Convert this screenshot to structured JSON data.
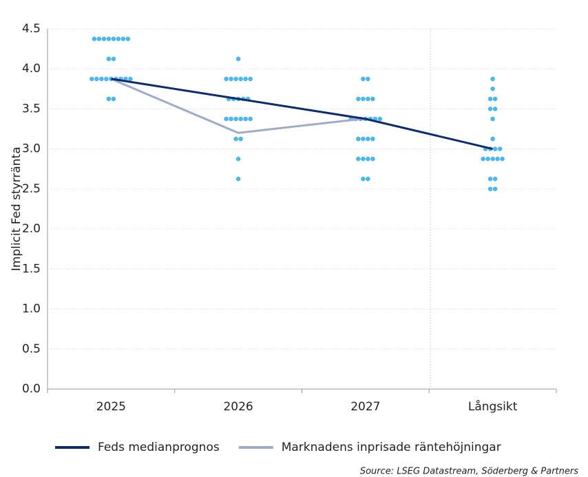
{
  "chart_data": {
    "type": "dotplot",
    "y_label": "Implicit Fed styrränta",
    "source": "Source: LSEG Datastream, Söderberg & Partners",
    "categories": [
      "2025",
      "2026",
      "2027",
      "Långsikt"
    ],
    "ylim": [
      0,
      4.5
    ],
    "yticks": [
      {
        "value": 0,
        "label": "0.0"
      },
      0.5,
      {
        "value": 1,
        "label": "1.0"
      },
      1.5,
      {
        "value": 2,
        "label": "2.0"
      },
      2.5,
      {
        "value": 3,
        "label": "3.0"
      },
      3.5,
      {
        "value": 4,
        "label": "4.0"
      },
      4.5
    ],
    "grid": true,
    "dot_color": "#4db8e8",
    "dots": [
      {
        "levels": [
          4.375,
          4.125,
          3.875,
          3.625
        ],
        "counts": [
          8,
          2,
          9,
          2
        ]
      },
      {
        "levels": [
          4.125,
          3.875,
          3.625,
          3.375,
          3.125,
          2.875,
          2.625
        ],
        "counts": [
          1,
          6,
          5,
          6,
          2,
          1,
          1
        ]
      },
      {
        "levels": [
          3.875,
          3.625,
          3.375,
          3.125,
          2.875,
          2.625
        ],
        "counts": [
          2,
          4,
          7,
          4,
          4,
          2
        ]
      },
      {
        "levels": [
          3.875,
          3.75,
          3.625,
          3.5,
          3.375,
          3.125,
          3.0,
          2.875,
          2.625,
          2.5
        ],
        "counts": [
          1,
          1,
          2,
          2,
          1,
          1,
          4,
          5,
          2,
          2
        ]
      }
    ],
    "series": [
      {
        "name": "Feds medianprognos",
        "color": "#0d2a6e",
        "values": [
          3.875,
          3.625,
          3.375,
          3.0
        ]
      },
      {
        "name": "Marknadens inprisade räntehöjningar",
        "color": "#9eabc9",
        "values": [
          3.875,
          3.2,
          3.38,
          null
        ]
      }
    ]
  }
}
